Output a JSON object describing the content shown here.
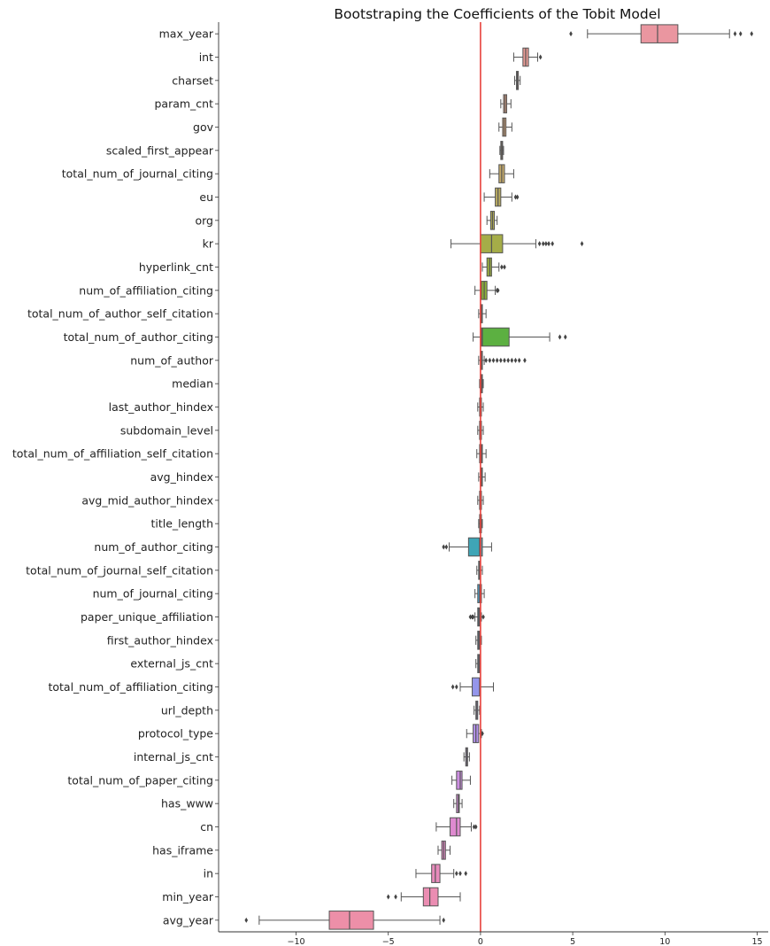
{
  "chart_data": {
    "type": "boxplot",
    "title": "Bootstraping the Coefficients of the Tobit Model",
    "xlim": [
      -14.2,
      15.6
    ],
    "x_ticks": [
      -10,
      -5,
      0,
      5,
      10,
      15
    ],
    "x_tick_labels": [
      "−10",
      "−5",
      "0",
      "5",
      "10",
      "15"
    ],
    "reference_line": {
      "x": 0,
      "color": "#e8423c"
    },
    "grid": false,
    "box_edge_color": "#555555",
    "series": [
      {
        "name": "max_year",
        "color": "#ea96a0",
        "whislo": 5.8,
        "q1": 8.7,
        "med": 9.6,
        "q3": 10.7,
        "whishi": 13.5,
        "fliers": [
          4.9,
          13.8,
          14.1,
          14.7
        ]
      },
      {
        "name": "int",
        "color": "#e79a94",
        "whislo": 1.8,
        "q1": 2.3,
        "med": 2.45,
        "q3": 2.6,
        "whishi": 3.1,
        "fliers": [
          3.25
        ]
      },
      {
        "name": "charset",
        "color": "#e39d8f",
        "whislo": 1.85,
        "q1": 1.95,
        "med": 2.0,
        "q3": 2.05,
        "whishi": 2.15,
        "fliers": []
      },
      {
        "name": "param_cnt",
        "color": "#dba083",
        "whislo": 1.1,
        "q1": 1.25,
        "med": 1.33,
        "q3": 1.42,
        "whishi": 1.65,
        "fliers": []
      },
      {
        "name": "gov",
        "color": "#d4a47a",
        "whislo": 1.0,
        "q1": 1.2,
        "med": 1.28,
        "q3": 1.38,
        "whishi": 1.7,
        "fliers": []
      },
      {
        "name": "scaled_first_appear",
        "color": "#cba672",
        "whislo": 1.05,
        "q1": 1.1,
        "med": 1.15,
        "q3": 1.2,
        "whishi": 1.25,
        "fliers": []
      },
      {
        "name": "total_num_of_journal_citing",
        "color": "#c2a86a",
        "whislo": 0.5,
        "q1": 1.0,
        "med": 1.15,
        "q3": 1.3,
        "whishi": 1.8,
        "fliers": []
      },
      {
        "name": "eu",
        "color": "#b8aa60",
        "whislo": 0.2,
        "q1": 0.8,
        "med": 0.95,
        "q3": 1.1,
        "whishi": 1.7,
        "fliers": [
          1.9,
          2.0
        ]
      },
      {
        "name": "org",
        "color": "#b0ac56",
        "whislo": 0.35,
        "q1": 0.55,
        "med": 0.65,
        "q3": 0.75,
        "whishi": 0.9,
        "fliers": []
      },
      {
        "name": "kr",
        "color": "#a5ad48",
        "whislo": -1.6,
        "q1": 0.0,
        "med": 0.6,
        "q3": 1.2,
        "whishi": 3.0,
        "fliers": [
          3.2,
          3.4,
          3.55,
          3.7,
          3.9,
          5.5
        ]
      },
      {
        "name": "hyperlink_cnt",
        "color": "#9aae3e",
        "whislo": 0.1,
        "q1": 0.35,
        "med": 0.5,
        "q3": 0.6,
        "whishi": 1.0,
        "fliers": [
          1.15,
          1.3
        ]
      },
      {
        "name": "num_of_affiliation_citing",
        "color": "#8db039",
        "whislo": -0.3,
        "q1": 0.05,
        "med": 0.2,
        "q3": 0.35,
        "whishi": 0.8,
        "fliers": [
          0.9,
          0.95
        ]
      },
      {
        "name": "total_num_of_author_self_citation",
        "color": "#7fb23e",
        "whislo": -0.1,
        "q1": 0.0,
        "med": 0.05,
        "q3": 0.1,
        "whishi": 0.3,
        "fliers": []
      },
      {
        "name": "total_num_of_author_citing",
        "color": "#5cb041",
        "whislo": -0.4,
        "q1": 0.05,
        "med": 0.1,
        "q3": 1.55,
        "whishi": 3.75,
        "fliers": [
          4.3,
          4.6
        ]
      },
      {
        "name": "num_of_author",
        "color": "#4fae57",
        "whislo": -0.1,
        "q1": 0.0,
        "med": 0.05,
        "q3": 0.1,
        "whishi": 0.2,
        "fliers": [
          0.3,
          0.5,
          0.7,
          0.9,
          1.1,
          1.3,
          1.5,
          1.7,
          1.9,
          2.1,
          2.4
        ]
      },
      {
        "name": "median",
        "color": "#4bad6d",
        "whislo": -0.05,
        "q1": 0.0,
        "med": 0.05,
        "q3": 0.1,
        "whishi": 0.15,
        "fliers": []
      },
      {
        "name": "last_author_hindex",
        "color": "#49ac7c",
        "whislo": -0.15,
        "q1": -0.05,
        "med": 0.0,
        "q3": 0.05,
        "whishi": 0.15,
        "fliers": []
      },
      {
        "name": "subdomain_level",
        "color": "#47ab88",
        "whislo": -0.15,
        "q1": -0.05,
        "med": 0.0,
        "q3": 0.05,
        "whishi": 0.15,
        "fliers": []
      },
      {
        "name": "total_num_of_affiliation_self_citation",
        "color": "#46aa93",
        "whislo": -0.2,
        "q1": -0.05,
        "med": 0.05,
        "q3": 0.1,
        "whishi": 0.3,
        "fliers": []
      },
      {
        "name": "avg_hindex",
        "color": "#45a99c",
        "whislo": -0.1,
        "q1": 0.0,
        "med": 0.05,
        "q3": 0.1,
        "whishi": 0.25,
        "fliers": []
      },
      {
        "name": "avg_mid_author_hindex",
        "color": "#44a8a5",
        "whislo": -0.15,
        "q1": -0.05,
        "med": 0.0,
        "q3": 0.05,
        "whishi": 0.15,
        "fliers": []
      },
      {
        "name": "title_length",
        "color": "#43a7ad",
        "whislo": -0.1,
        "q1": -0.05,
        "med": 0.0,
        "q3": 0.05,
        "whishi": 0.1,
        "fliers": []
      },
      {
        "name": "num_of_author_citing",
        "color": "#3fa5b6",
        "whislo": -1.7,
        "q1": -0.65,
        "med": -0.05,
        "q3": 0.1,
        "whishi": 0.6,
        "fliers": [
          -2.0,
          -1.85
        ]
      },
      {
        "name": "total_num_of_journal_self_citation",
        "color": "#45a4c4",
        "whislo": -0.2,
        "q1": -0.1,
        "med": -0.05,
        "q3": 0.0,
        "whishi": 0.1,
        "fliers": []
      },
      {
        "name": "num_of_journal_citing",
        "color": "#4ca2cf",
        "whislo": -0.3,
        "q1": -0.15,
        "med": -0.05,
        "q3": 0.05,
        "whishi": 0.2,
        "fliers": []
      },
      {
        "name": "paper_unique_affiliation",
        "color": "#5a9fd8",
        "whislo": -0.3,
        "q1": -0.15,
        "med": -0.1,
        "q3": -0.05,
        "whishi": 0.05,
        "fliers": [
          -0.55,
          -0.45,
          -0.4,
          0.15
        ]
      },
      {
        "name": "first_author_hindex",
        "color": "#6e9ce2",
        "whislo": -0.25,
        "q1": -0.15,
        "med": -0.1,
        "q3": -0.05,
        "whishi": 0.05,
        "fliers": []
      },
      {
        "name": "external_js_cnt",
        "color": "#8299e8",
        "whislo": -0.25,
        "q1": -0.15,
        "med": -0.1,
        "q3": -0.05,
        "whishi": 0.0,
        "fliers": []
      },
      {
        "name": "total_num_of_affiliation_citing",
        "color": "#9596eb",
        "whislo": -1.1,
        "q1": -0.45,
        "med": -0.05,
        "q3": 0.0,
        "whishi": 0.7,
        "fliers": [
          -1.5,
          -1.3
        ]
      },
      {
        "name": "url_depth",
        "color": "#a693ec",
        "whislo": -0.35,
        "q1": -0.25,
        "med": -0.2,
        "q3": -0.15,
        "whishi": -0.05,
        "fliers": []
      },
      {
        "name": "protocol_type",
        "color": "#b391ea",
        "whislo": -0.75,
        "q1": -0.4,
        "med": -0.25,
        "q3": -0.1,
        "whishi": 0.05,
        "fliers": [
          0.1
        ]
      },
      {
        "name": "internal_js_cnt",
        "color": "#c08fe6",
        "whislo": -0.9,
        "q1": -0.8,
        "med": -0.75,
        "q3": -0.7,
        "whishi": -0.6,
        "fliers": []
      },
      {
        "name": "total_num_of_paper_citing",
        "color": "#cc8ee1",
        "whislo": -1.55,
        "q1": -1.3,
        "med": -1.1,
        "q3": -1.0,
        "whishi": -0.55,
        "fliers": []
      },
      {
        "name": "has_www",
        "color": "#d78cd9",
        "whislo": -1.45,
        "q1": -1.3,
        "med": -1.2,
        "q3": -1.15,
        "whishi": -1.0,
        "fliers": []
      },
      {
        "name": "cn",
        "color": "#df8ad0",
        "whislo": -2.4,
        "q1": -1.65,
        "med": -1.3,
        "q3": -1.1,
        "whishi": -0.5,
        "fliers": [
          -0.35,
          -0.25
        ]
      },
      {
        "name": "has_iframe",
        "color": "#e48ac6",
        "whislo": -2.3,
        "q1": -2.1,
        "med": -2.0,
        "q3": -1.9,
        "whishi": -1.65,
        "fliers": []
      },
      {
        "name": "in",
        "color": "#e88bbc",
        "whislo": -3.5,
        "q1": -2.65,
        "med": -2.45,
        "q3": -2.2,
        "whishi": -1.45,
        "fliers": [
          -1.3,
          -1.1,
          -0.8
        ]
      },
      {
        "name": "min_year",
        "color": "#eb8db2",
        "whislo": -4.3,
        "q1": -3.1,
        "med": -2.75,
        "q3": -2.3,
        "whishi": -1.1,
        "fliers": [
          -5.0,
          -4.6
        ]
      },
      {
        "name": "avg_year",
        "color": "#ed8fa8",
        "whislo": -12.0,
        "q1": -8.2,
        "med": -7.1,
        "q3": -5.8,
        "whishi": -2.2,
        "fliers": [
          -12.7,
          -2.0
        ]
      }
    ]
  }
}
